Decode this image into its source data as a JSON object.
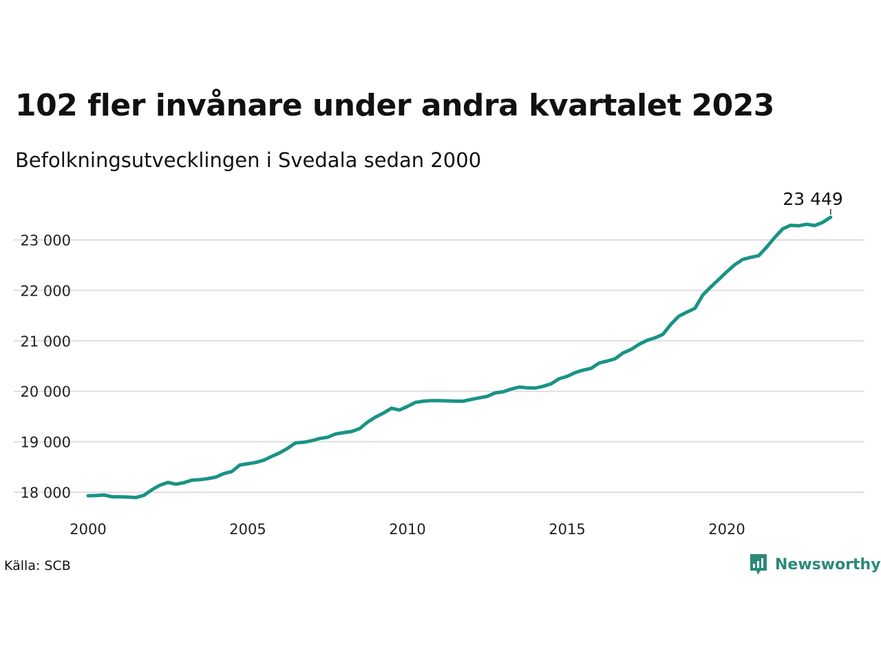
{
  "header": {
    "title": "102 fler invånare under andra kvartalet 2023",
    "subtitle": "Befolkningsutvecklingen i Svedala sedan 2000"
  },
  "footer": {
    "source": "Källa: SCB",
    "brand": "Newsworthy"
  },
  "colors": {
    "line": "#1a9384",
    "grid": "#dedede",
    "brand": "#2a8a78"
  },
  "chart_data": {
    "type": "line",
    "title": "102 fler invånare under andra kvartalet 2023",
    "subtitle": "Befolkningsutvecklingen i Svedala sedan 2000",
    "xlabel": "",
    "ylabel": "",
    "xlim": [
      2000,
      2024.5
    ],
    "ylim": [
      17750,
      23450
    ],
    "xticks": [
      2000,
      2005,
      2010,
      2015,
      2020
    ],
    "xtick_labels": [
      "2000",
      "2005",
      "2010",
      "2015",
      "2020"
    ],
    "yticks": [
      18000,
      19000,
      20000,
      21000,
      22000,
      23000
    ],
    "ytick_labels": [
      "18 000",
      "19 000",
      "20 000",
      "21 000",
      "22 000",
      "23 000"
    ],
    "grid": "horizontal",
    "legend": "none",
    "end_label": "23 449",
    "series": [
      {
        "frequency": "quarterly",
        "x": [
          2000.0,
          2000.25,
          2000.5,
          2000.75,
          2001.0,
          2001.25,
          2001.5,
          2001.75,
          2002.0,
          2002.25,
          2002.5,
          2002.75,
          2003.0,
          2003.25,
          2003.5,
          2003.75,
          2004.0,
          2004.25,
          2004.5,
          2004.75,
          2005.0,
          2005.25,
          2005.5,
          2005.75,
          2006.0,
          2006.25,
          2006.5,
          2006.75,
          2007.0,
          2007.25,
          2007.5,
          2007.75,
          2008.0,
          2008.25,
          2008.5,
          2008.75,
          2009.0,
          2009.25,
          2009.5,
          2009.75,
          2010.0,
          2010.25,
          2010.5,
          2010.75,
          2011.0,
          2011.25,
          2011.5,
          2011.75,
          2012.0,
          2012.25,
          2012.5,
          2012.75,
          2013.0,
          2013.25,
          2013.5,
          2013.75,
          2014.0,
          2014.25,
          2014.5,
          2014.75,
          2015.0,
          2015.25,
          2015.5,
          2015.75,
          2016.0,
          2016.25,
          2016.5,
          2016.75,
          2017.0,
          2017.25,
          2017.5,
          2017.75,
          2018.0,
          2018.25,
          2018.5,
          2018.75,
          2019.0,
          2019.25,
          2019.5,
          2019.75,
          2020.0,
          2020.25,
          2020.5,
          2020.75,
          2021.0,
          2021.25,
          2021.5,
          2021.75,
          2022.0,
          2022.25,
          2022.5,
          2022.75,
          2023.0,
          2023.25
        ],
        "values": [
          17930,
          17935,
          17945,
          17910,
          17910,
          17905,
          17895,
          17940,
          18050,
          18140,
          18195,
          18160,
          18190,
          18240,
          18250,
          18270,
          18300,
          18370,
          18410,
          18540,
          18565,
          18590,
          18635,
          18710,
          18780,
          18870,
          18980,
          18990,
          19020,
          19065,
          19090,
          19155,
          19180,
          19205,
          19260,
          19390,
          19490,
          19570,
          19665,
          19630,
          19700,
          19780,
          19805,
          19815,
          19815,
          19810,
          19805,
          19805,
          19840,
          19870,
          19900,
          19970,
          19990,
          20045,
          20085,
          20070,
          20065,
          20100,
          20150,
          20250,
          20295,
          20370,
          20420,
          20455,
          20560,
          20600,
          20645,
          20760,
          20830,
          20930,
          21010,
          21060,
          21130,
          21330,
          21490,
          21570,
          21645,
          21910,
          22070,
          22220,
          22370,
          22510,
          22615,
          22655,
          22690,
          22860,
          23050,
          23220,
          23290,
          23280,
          23310,
          23285,
          23347,
          23449
        ]
      }
    ]
  }
}
